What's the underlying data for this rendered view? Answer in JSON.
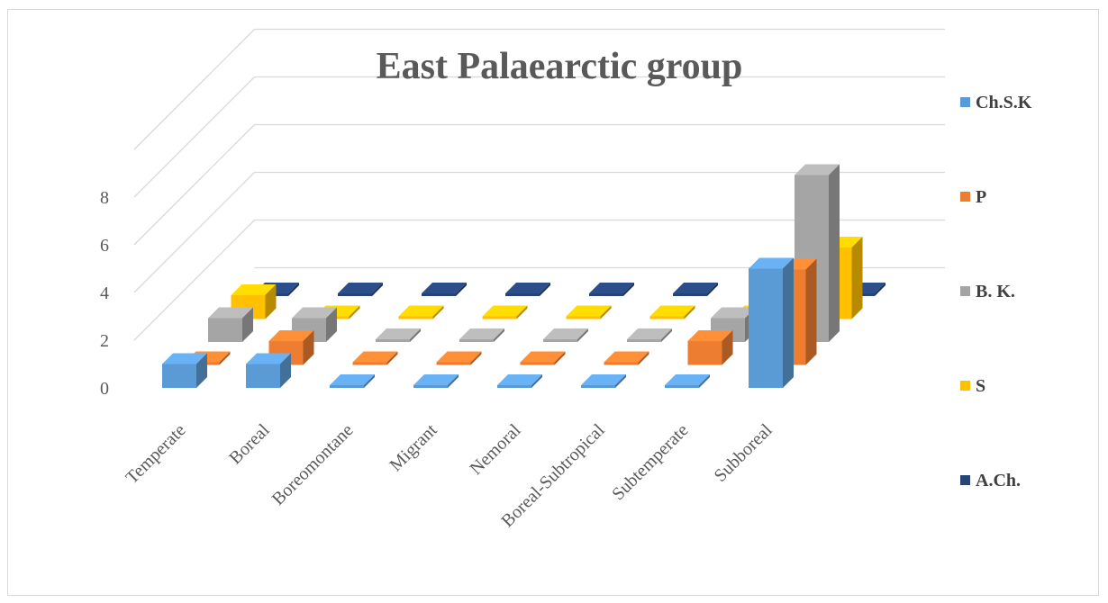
{
  "chart_data": {
    "type": "bar",
    "title": "East Palaearctic group",
    "categories": [
      "Temperate",
      "Boreal",
      "Boreomontane",
      "Migrant",
      "Nemoral",
      "Boreal-Subtropical",
      "Subtemperate",
      "Subboreal"
    ],
    "series": [
      {
        "name": "Ch.S.K",
        "color": "#5b9bd5",
        "values": [
          1,
          1,
          0,
          0,
          0,
          0,
          0,
          5
        ]
      },
      {
        "name": "P",
        "color": "#ed7d31",
        "values": [
          0,
          1,
          0,
          0,
          0,
          0,
          1,
          4
        ]
      },
      {
        "name": "B. K.",
        "color": "#a5a5a5",
        "values": [
          1,
          1,
          0,
          0,
          0,
          0,
          1,
          7
        ]
      },
      {
        "name": "S",
        "color": "#ffc000",
        "values": [
          1,
          0,
          0,
          0,
          0,
          0,
          0,
          3
        ]
      },
      {
        "name": "A.Ch.",
        "color": "#264478",
        "values": [
          0,
          0,
          0,
          0,
          0,
          0,
          0,
          0
        ]
      }
    ],
    "y_ticks": [
      "0",
      "2",
      "4",
      "6",
      "8"
    ],
    "ylim": [
      0,
      10
    ],
    "legend_position": "right",
    "grid": true
  }
}
